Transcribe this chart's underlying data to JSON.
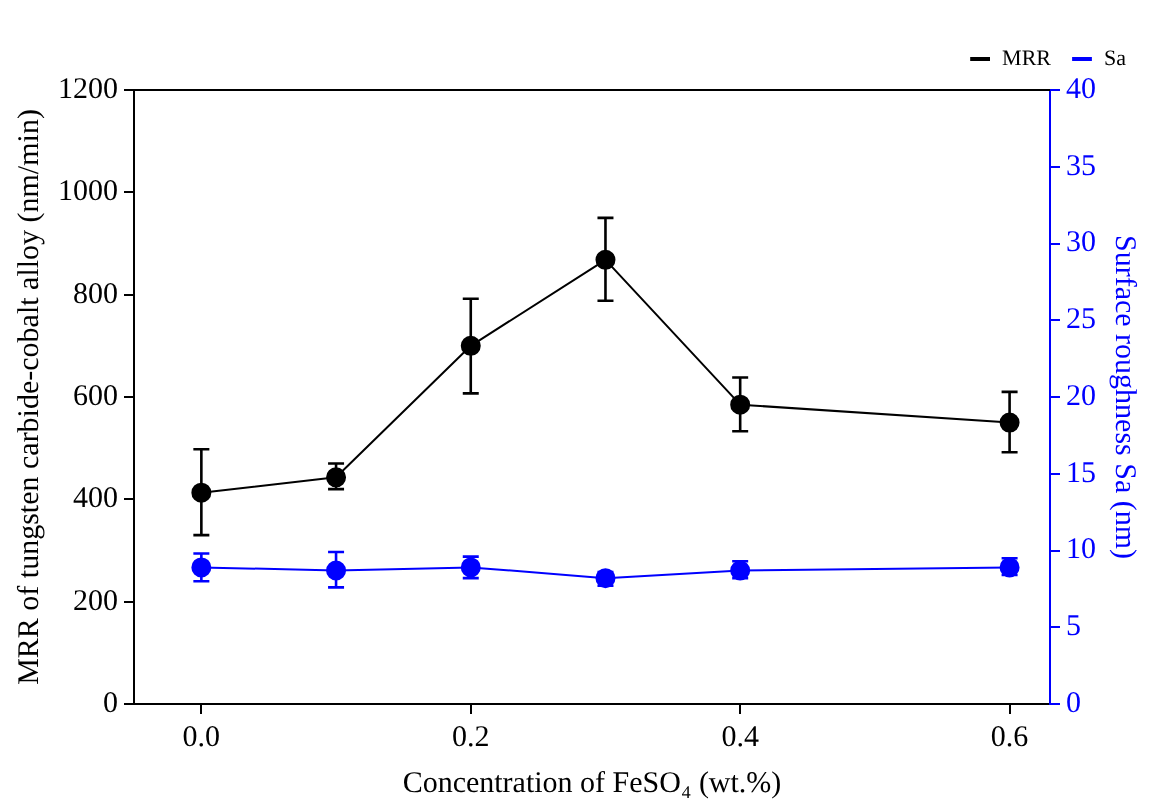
{
  "chart_data": {
    "type": "line",
    "xlabel": "Concentration of FeSO₄ (wt.%)",
    "ylabel": "MRR of tungsten carbide-cobalt alloy (nm/min)",
    "y2label": "Surface roughness Sa (nm)",
    "x": [
      0,
      0.1,
      0.2,
      0.3,
      0.4,
      0.6
    ],
    "xlim": [
      -0.05,
      0.63
    ],
    "xticks": [
      {
        "value": 0,
        "label": "0.0"
      },
      0.2,
      0.4,
      0.6
    ],
    "ylim": [
      0,
      1200
    ],
    "yticks": [
      0,
      200,
      400,
      600,
      800,
      1000,
      1200
    ],
    "y2lim": [
      0,
      40
    ],
    "y2ticks": [
      0,
      5,
      10,
      15,
      20,
      25,
      30,
      35,
      40
    ],
    "series": [
      {
        "name": "MRR",
        "color": "#000000",
        "values": [
          413,
          443,
          700,
          868,
          585,
          550
        ],
        "errors": [
          [
            330,
            498
          ],
          [
            420,
            470
          ],
          [
            607,
            792
          ],
          [
            788,
            950
          ],
          [
            533,
            638
          ],
          [
            492,
            610
          ]
        ]
      },
      {
        "name": "Sa",
        "color": "#0000ff",
        "axis": "y2",
        "values": [
          8.9,
          8.7,
          8.9,
          8.2,
          8.7,
          8.9
        ],
        "errors": [
          [
            8.0,
            9.8
          ],
          [
            7.6,
            9.9
          ],
          [
            8.2,
            9.6
          ],
          [
            7.7,
            8.6
          ],
          [
            8.2,
            9.3
          ],
          [
            8.4,
            9.5
          ]
        ]
      }
    ],
    "grid": false,
    "legend": "top right",
    "marker": "circle",
    "line_style": "solid"
  }
}
